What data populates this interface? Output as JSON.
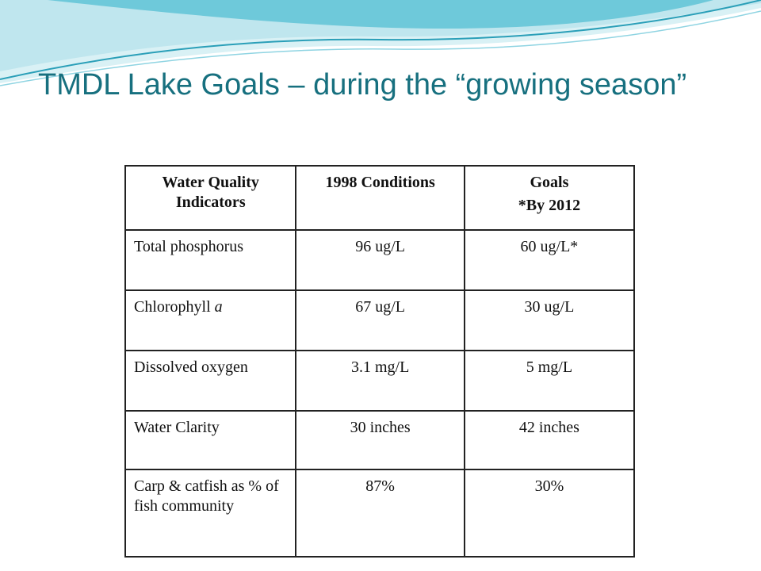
{
  "slide": {
    "title": "TMDL Lake Goals – during the “growing season”",
    "accent_color": "#17707f",
    "wave_colors": [
      "#bfe6ee",
      "#5fc3d6",
      "#2a9fb8",
      "#d9f1f5"
    ]
  },
  "table": {
    "headers": {
      "indicator": "Water Quality Indicators",
      "conditions": "1998 Conditions",
      "goals": "Goals",
      "goals_note": "*By 2012"
    },
    "rows": [
      {
        "indicator": "Total phosphorus",
        "conditions": "96 ug/L",
        "goals": "60 ug/L*"
      },
      {
        "indicator": "Chlorophyll ",
        "indicator_italic": "a",
        "conditions": "67 ug/L",
        "goals": "30 ug/L"
      },
      {
        "indicator": "Dissolved oxygen",
        "conditions": "3.1 mg/L",
        "goals": "5 mg/L"
      },
      {
        "indicator": "Water Clarity",
        "conditions": "30 inches",
        "goals": "42 inches"
      },
      {
        "indicator": "Carp & catfish as % of fish community",
        "conditions": "87%",
        "goals": "30%"
      }
    ]
  }
}
